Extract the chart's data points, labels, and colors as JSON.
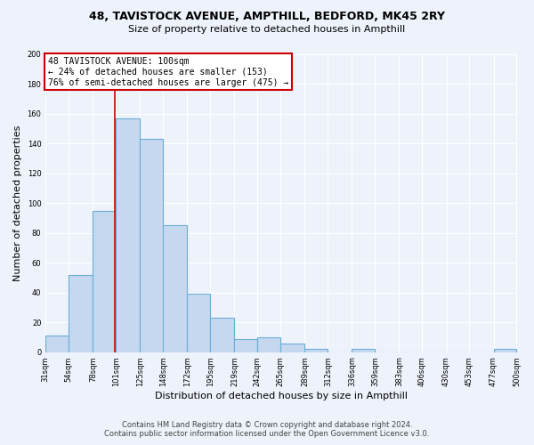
{
  "title": "48, TAVISTOCK AVENUE, AMPTHILL, BEDFORD, MK45 2RY",
  "subtitle": "Size of property relative to detached houses in Ampthill",
  "xlabel": "Distribution of detached houses by size in Ampthill",
  "ylabel": "Number of detached properties",
  "bar_edges": [
    31,
    54,
    78,
    101,
    125,
    148,
    172,
    195,
    219,
    242,
    265,
    289,
    312,
    336,
    359,
    383,
    406,
    430,
    453,
    477,
    500
  ],
  "bar_heights": [
    11,
    52,
    95,
    157,
    143,
    85,
    39,
    23,
    9,
    10,
    6,
    2,
    0,
    2,
    0,
    0,
    0,
    0,
    0,
    2
  ],
  "bar_color": "#c5d8f0",
  "bar_edge_color": "#6aaed6",
  "property_line_x": 100,
  "annotation_text": "48 TAVISTOCK AVENUE: 100sqm\n← 24% of detached houses are smaller (153)\n76% of semi-detached houses are larger (475) →",
  "annotation_box_color": "#ffffff",
  "annotation_box_edge_color": "#cc0000",
  "vline_color": "#cc0000",
  "footer_line1": "Contains HM Land Registry data © Crown copyright and database right 2024.",
  "footer_line2": "Contains public sector information licensed under the Open Government Licence v3.0.",
  "ylim": [
    0,
    200
  ],
  "yticks": [
    0,
    20,
    40,
    60,
    80,
    100,
    120,
    140,
    160,
    180,
    200
  ],
  "background_color": "#eef2fb",
  "plot_bg_color": "#eef2fb",
  "grid_color": "#ffffff",
  "title_fontsize": 9,
  "subtitle_fontsize": 8,
  "ylabel_fontsize": 8,
  "xlabel_fontsize": 8,
  "tick_fontsize": 6,
  "annotation_fontsize": 7,
  "footer_fontsize": 6
}
